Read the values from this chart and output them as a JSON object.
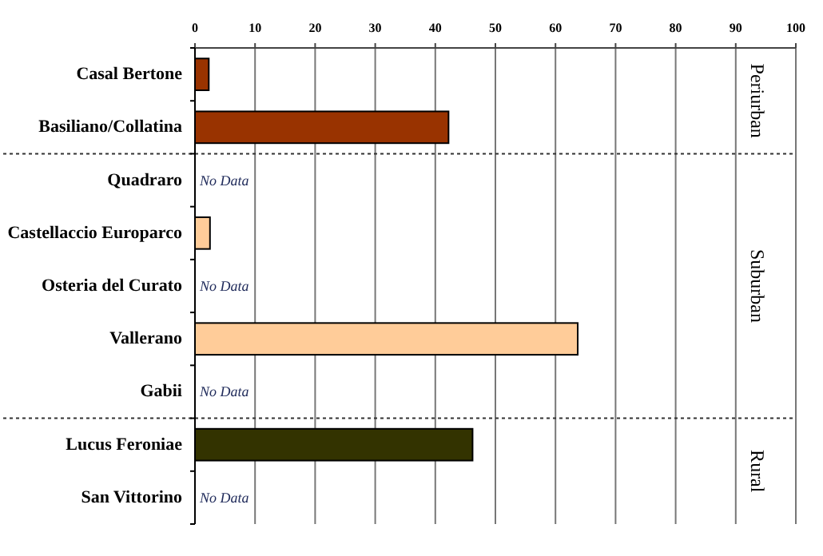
{
  "chart_data": {
    "type": "bar",
    "orientation": "horizontal",
    "categories": [
      "Casal Bertone",
      "Basiliano/Collatina",
      "Quadraro",
      "Castellaccio Europarco",
      "Osteria del Curato",
      "Vallerano",
      "Gabii",
      "Lucus Feroniae",
      "San Vittorino"
    ],
    "values": [
      2.3,
      42.2,
      null,
      2.5,
      null,
      63.7,
      null,
      46.2,
      null
    ],
    "colors": [
      "#993300",
      "#993300",
      "#ffcc99",
      "#ffcc99",
      "#ffcc99",
      "#ffcc99",
      "#ffcc99",
      "#333300",
      "#333300"
    ],
    "xlim": [
      0,
      100
    ],
    "xticks": [
      0,
      10,
      20,
      30,
      40,
      50,
      60,
      70,
      80,
      90,
      100
    ],
    "grid": "x",
    "annotations": [
      "Periurban",
      "Suburban",
      "Rural",
      "No Data",
      "No Data",
      "No Data",
      "No Data"
    ]
  }
}
